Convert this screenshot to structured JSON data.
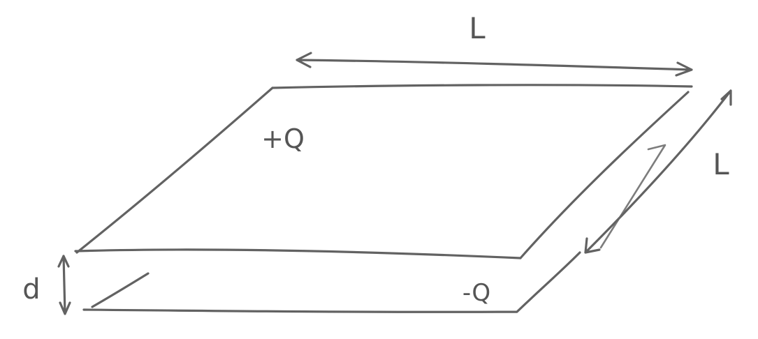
{
  "labels": {
    "length_top": "L",
    "length_side": "L",
    "separation": "d",
    "charge_top": "+Q",
    "charge_bottom": "-Q"
  },
  "colors": {
    "pencil": "#555555",
    "background": "#ffffff"
  }
}
